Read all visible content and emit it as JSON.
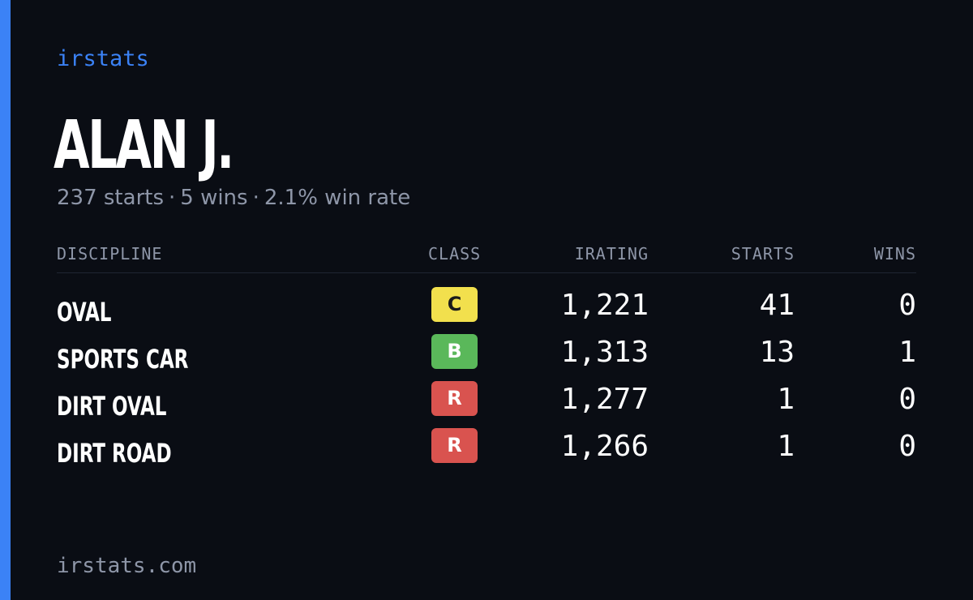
{
  "brand": "irstats",
  "driver": {
    "name": "ALAN J.",
    "starts_text": "237 starts",
    "wins_text": "5 wins",
    "win_rate_text": "2.1% win rate",
    "separator": "·"
  },
  "table": {
    "headers": {
      "discipline": "DISCIPLINE",
      "class": "CLASS",
      "irating": "IRATING",
      "starts": "STARTS",
      "wins": "WINS"
    },
    "rows": [
      {
        "discipline": "OVAL",
        "class": "C",
        "irating": "1,221",
        "starts": "41",
        "wins": "0"
      },
      {
        "discipline": "SPORTS CAR",
        "class": "B",
        "irating": "1,313",
        "starts": "13",
        "wins": "1"
      },
      {
        "discipline": "DIRT OVAL",
        "class": "R",
        "irating": "1,277",
        "starts": "1",
        "wins": "0"
      },
      {
        "discipline": "DIRT ROAD",
        "class": "R",
        "irating": "1,266",
        "starts": "1",
        "wins": "0"
      }
    ]
  },
  "class_colors": {
    "C": "#f2e04d",
    "B": "#5ab85a",
    "R": "#d9534f"
  },
  "accent_color": "#3b82f6",
  "footer": "irstats.com"
}
